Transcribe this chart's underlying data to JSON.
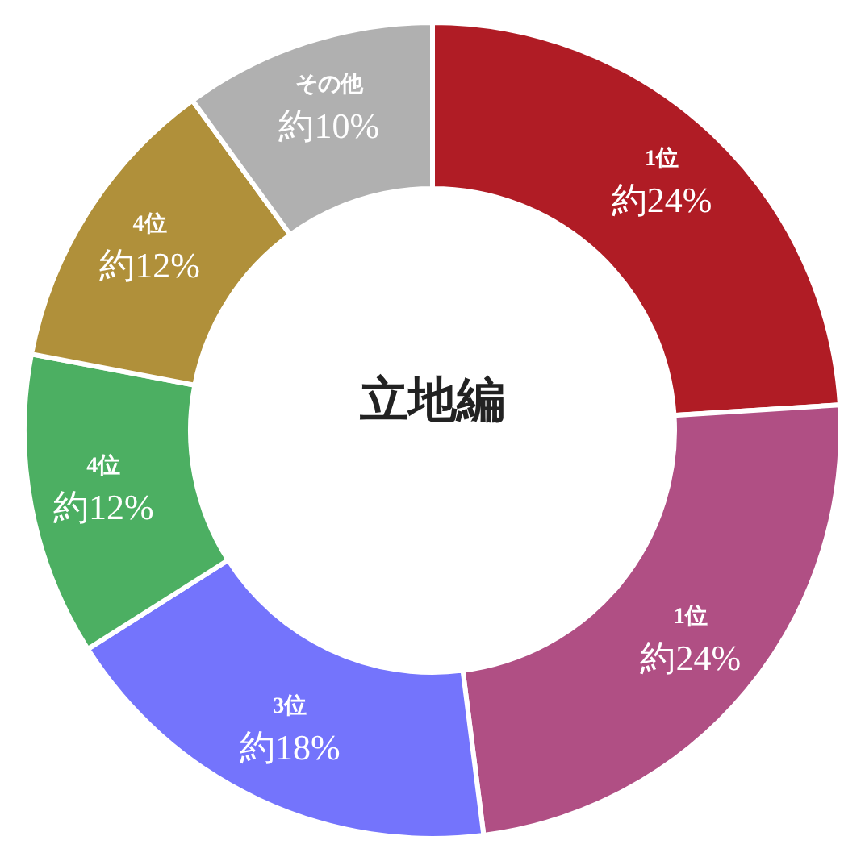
{
  "chart_data": {
    "type": "donut",
    "title": "立地編",
    "categories": [
      "1位",
      "1位",
      "3位",
      "4位",
      "4位",
      "その他"
    ],
    "values": [
      24,
      24,
      18,
      12,
      12,
      10
    ],
    "value_labels": [
      "約24%",
      "約24%",
      "約18%",
      "約12%",
      "約12%",
      "約10%"
    ],
    "colors": [
      "#b01c25",
      "#b04f84",
      "#7474fc",
      "#4caf62",
      "#b0903a",
      "#b0b0b0"
    ]
  }
}
